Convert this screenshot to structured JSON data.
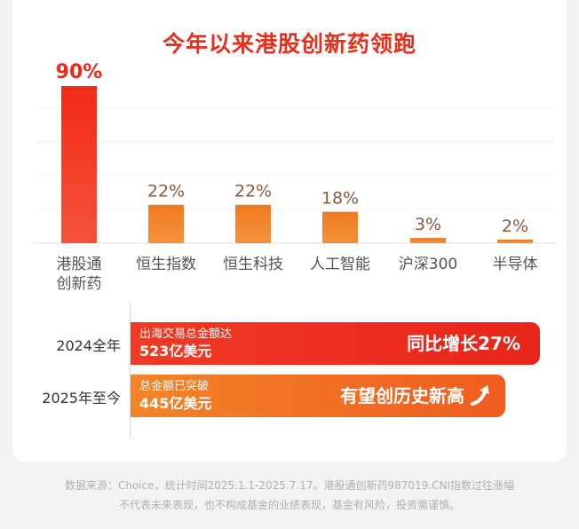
{
  "title": "今年以来港股创新药领跑",
  "chart_data": {
    "type": "bar",
    "categories": [
      "港股通\n创新药",
      "恒生指数",
      "恒生科技",
      "人工智能",
      "沪深300",
      "半导体"
    ],
    "values": [
      90,
      22,
      22,
      18,
      3,
      2
    ],
    "labels": [
      "90%",
      "22%",
      "22%",
      "18%",
      "3%",
      "2%"
    ],
    "colors": [
      "#ee2a17",
      "#f07a22",
      "#f07a22",
      "#f07a22",
      "#f07a22",
      "#f07a22"
    ],
    "title": "今年以来港股创新药领跑",
    "xlabel": "",
    "ylabel": "",
    "ylim": [
      0,
      90
    ],
    "grid": true
  },
  "rows": [
    {
      "year": "2024全年",
      "line1": "出海交易总金额达",
      "line2": "523亿美元",
      "highlight": "同比增长27%",
      "color": "#e8251a"
    },
    {
      "year": "2025年至今",
      "line1": "总金额已突破",
      "line2": "445亿美元",
      "highlight": "有望创历史新高",
      "icon": "arrow-up-right-icon",
      "color": "#f07a22"
    }
  ],
  "footnote": {
    "line1": "数据来源：Choice，统计时间2025.1.1-2025.7.17。港股通创新药987019.CNI指数过往涨幅",
    "line2": "不代表未来表现，也不构成基金的业绩表现，基金有风险，投资需谨慎。"
  }
}
